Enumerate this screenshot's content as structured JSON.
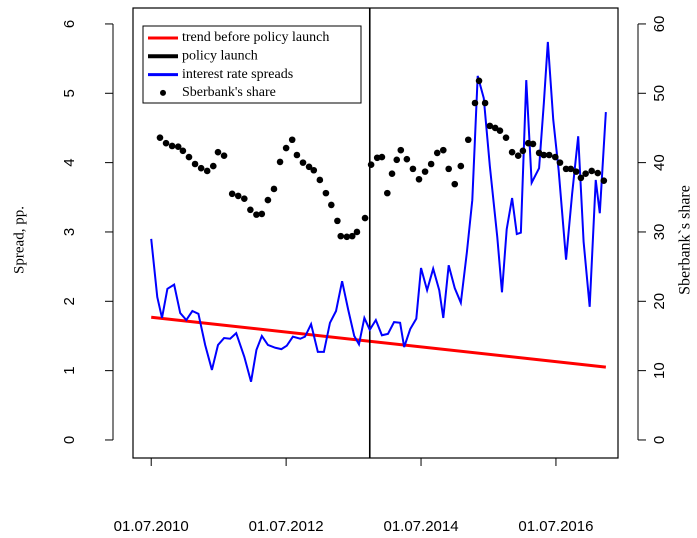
{
  "chart_data": {
    "type": "line",
    "y_label": "Spread, pp.",
    "y2_label": "Sberbank`s share",
    "xlim": [
      2010.23,
      2017.42
    ],
    "xticks": [
      {
        "value": 2010.5,
        "label": "01.07.2010"
      },
      {
        "value": 2012.5,
        "label": "01.07.2012"
      },
      {
        "value": 2014.5,
        "label": "01.07.2014"
      },
      {
        "value": 2016.5,
        "label": "01.07.2016"
      }
    ],
    "ylim": [
      -0.26,
      6.23
    ],
    "yticks": [
      0,
      1,
      2,
      3,
      4,
      5,
      6
    ],
    "y2lim": [
      -2.6,
      62.3
    ],
    "y2ticks": [
      0,
      10,
      20,
      30,
      40,
      50,
      60
    ],
    "legend": "top-left",
    "series": [
      {
        "name": "trend before policy launch",
        "color": "#ff0000",
        "style": "line",
        "x": [
          2010.5,
          2017.24
        ],
        "values": [
          1.77,
          1.05
        ]
      },
      {
        "name": "policy launch",
        "color": "#000000",
        "style": "vline",
        "x": [
          2013.74
        ]
      },
      {
        "name": "interest rate spreads",
        "color": "#0000ff",
        "style": "line",
        "x": [
          2010.5,
          2010.59,
          2010.66,
          2010.74,
          2010.84,
          2010.93,
          2011.02,
          2011.11,
          2011.2,
          2011.3,
          2011.4,
          2011.49,
          2011.58,
          2011.67,
          2011.76,
          2011.88,
          2011.98,
          2012.06,
          2012.14,
          2012.23,
          2012.34,
          2012.43,
          2012.51,
          2012.6,
          2012.71,
          2012.78,
          2012.87,
          2012.97,
          2013.06,
          2013.15,
          2013.24,
          2013.33,
          2013.42,
          2013.51,
          2013.58,
          2013.66,
          2013.74,
          2013.83,
          2013.92,
          2014.01,
          2014.1,
          2014.19,
          2014.25,
          2014.34,
          2014.43,
          2014.5,
          2014.59,
          2014.68,
          2014.77,
          2014.83,
          2014.91,
          2015,
          2015.09,
          2015.18,
          2015.26,
          2015.34,
          2015.43,
          2015.52,
          2015.63,
          2015.7,
          2015.77,
          2015.85,
          2015.92,
          2015.98,
          2016.06,
          2016.14,
          2016.25,
          2016.32,
          2016.38,
          2016.46,
          2016.54,
          2016.65,
          2016.74,
          2016.83,
          2016.91,
          2017,
          2017.09,
          2017.15,
          2017.24
        ],
        "values": [
          2.9,
          2.06,
          1.76,
          2.18,
          2.24,
          1.83,
          1.73,
          1.86,
          1.82,
          1.37,
          1.01,
          1.37,
          1.47,
          1.46,
          1.54,
          1.2,
          0.84,
          1.3,
          1.5,
          1.37,
          1.33,
          1.31,
          1.36,
          1.49,
          1.46,
          1.49,
          1.67,
          1.27,
          1.27,
          1.69,
          1.86,
          2.29,
          1.88,
          1.5,
          1.38,
          1.76,
          1.59,
          1.73,
          1.51,
          1.53,
          1.7,
          1.69,
          1.34,
          1.6,
          1.75,
          2.48,
          2.16,
          2.47,
          2.16,
          1.76,
          2.52,
          2.19,
          1.98,
          2.71,
          3.46,
          5.25,
          4.93,
          3.95,
          2.93,
          2.13,
          3.04,
          3.49,
          2.97,
          2.99,
          5.19,
          3.71,
          3.92,
          4.85,
          5.74,
          4.62,
          3.89,
          2.6,
          3.55,
          4.38,
          2.86,
          1.92,
          3.75,
          3.27,
          4.73
        ]
      },
      {
        "name": "Sberbank's share",
        "color": "#000000",
        "style": "points",
        "axis": "y2",
        "x": [
          2010.63,
          2010.72,
          2010.81,
          2010.9,
          2010.97,
          2011.06,
          2011.15,
          2011.24,
          2011.33,
          2011.42,
          2011.49,
          2011.58,
          2011.7,
          2011.79,
          2011.88,
          2011.97,
          2012.06,
          2012.14,
          2012.23,
          2012.32,
          2012.41,
          2012.5,
          2012.59,
          2012.66,
          2012.75,
          2012.84,
          2012.91,
          2013,
          2013.09,
          2013.17,
          2013.26,
          2013.31,
          2013.4,
          2013.48,
          2013.55,
          2013.67,
          2013.76,
          2013.85,
          2013.92,
          2014,
          2014.07,
          2014.14,
          2014.2,
          2014.29,
          2014.38,
          2014.47,
          2014.56,
          2014.65,
          2014.74,
          2014.83,
          2014.91,
          2015,
          2015.09,
          2015.2,
          2015.3,
          2015.36,
          2015.45,
          2015.52,
          2015.6,
          2015.67,
          2015.76,
          2015.85,
          2015.94,
          2016.01,
          2016.09,
          2016.16,
          2016.25,
          2016.32,
          2016.4,
          2016.49,
          2016.56,
          2016.65,
          2016.72,
          2016.8,
          2016.87,
          2016.94,
          2017.03,
          2017.12,
          2017.21
        ],
        "values": [
          43.6,
          42.8,
          42.4,
          42.3,
          41.7,
          40.8,
          39.8,
          39.2,
          38.8,
          39.5,
          41.5,
          41.0,
          35.5,
          35.2,
          34.8,
          33.2,
          32.5,
          32.6,
          34.6,
          36.2,
          40.1,
          42.1,
          43.3,
          41.1,
          40.0,
          39.4,
          38.9,
          37.5,
          35.6,
          33.9,
          31.6,
          29.4,
          29.3,
          29.4,
          30.0,
          32.0,
          39.7,
          40.7,
          40.8,
          35.6,
          38.4,
          40.4,
          41.8,
          40.5,
          39.1,
          37.6,
          38.7,
          39.8,
          41.4,
          41.8,
          39.1,
          36.9,
          39.5,
          43.3,
          48.6,
          51.8,
          48.6,
          45.3,
          45.0,
          44.6,
          43.6,
          41.5,
          41.0,
          41.7,
          42.8,
          42.7,
          41.4,
          41.1,
          41.1,
          40.8,
          40.0,
          39.1,
          39.1,
          38.7,
          37.8,
          38.4,
          38.8,
          38.5,
          37.4
        ]
      }
    ]
  }
}
